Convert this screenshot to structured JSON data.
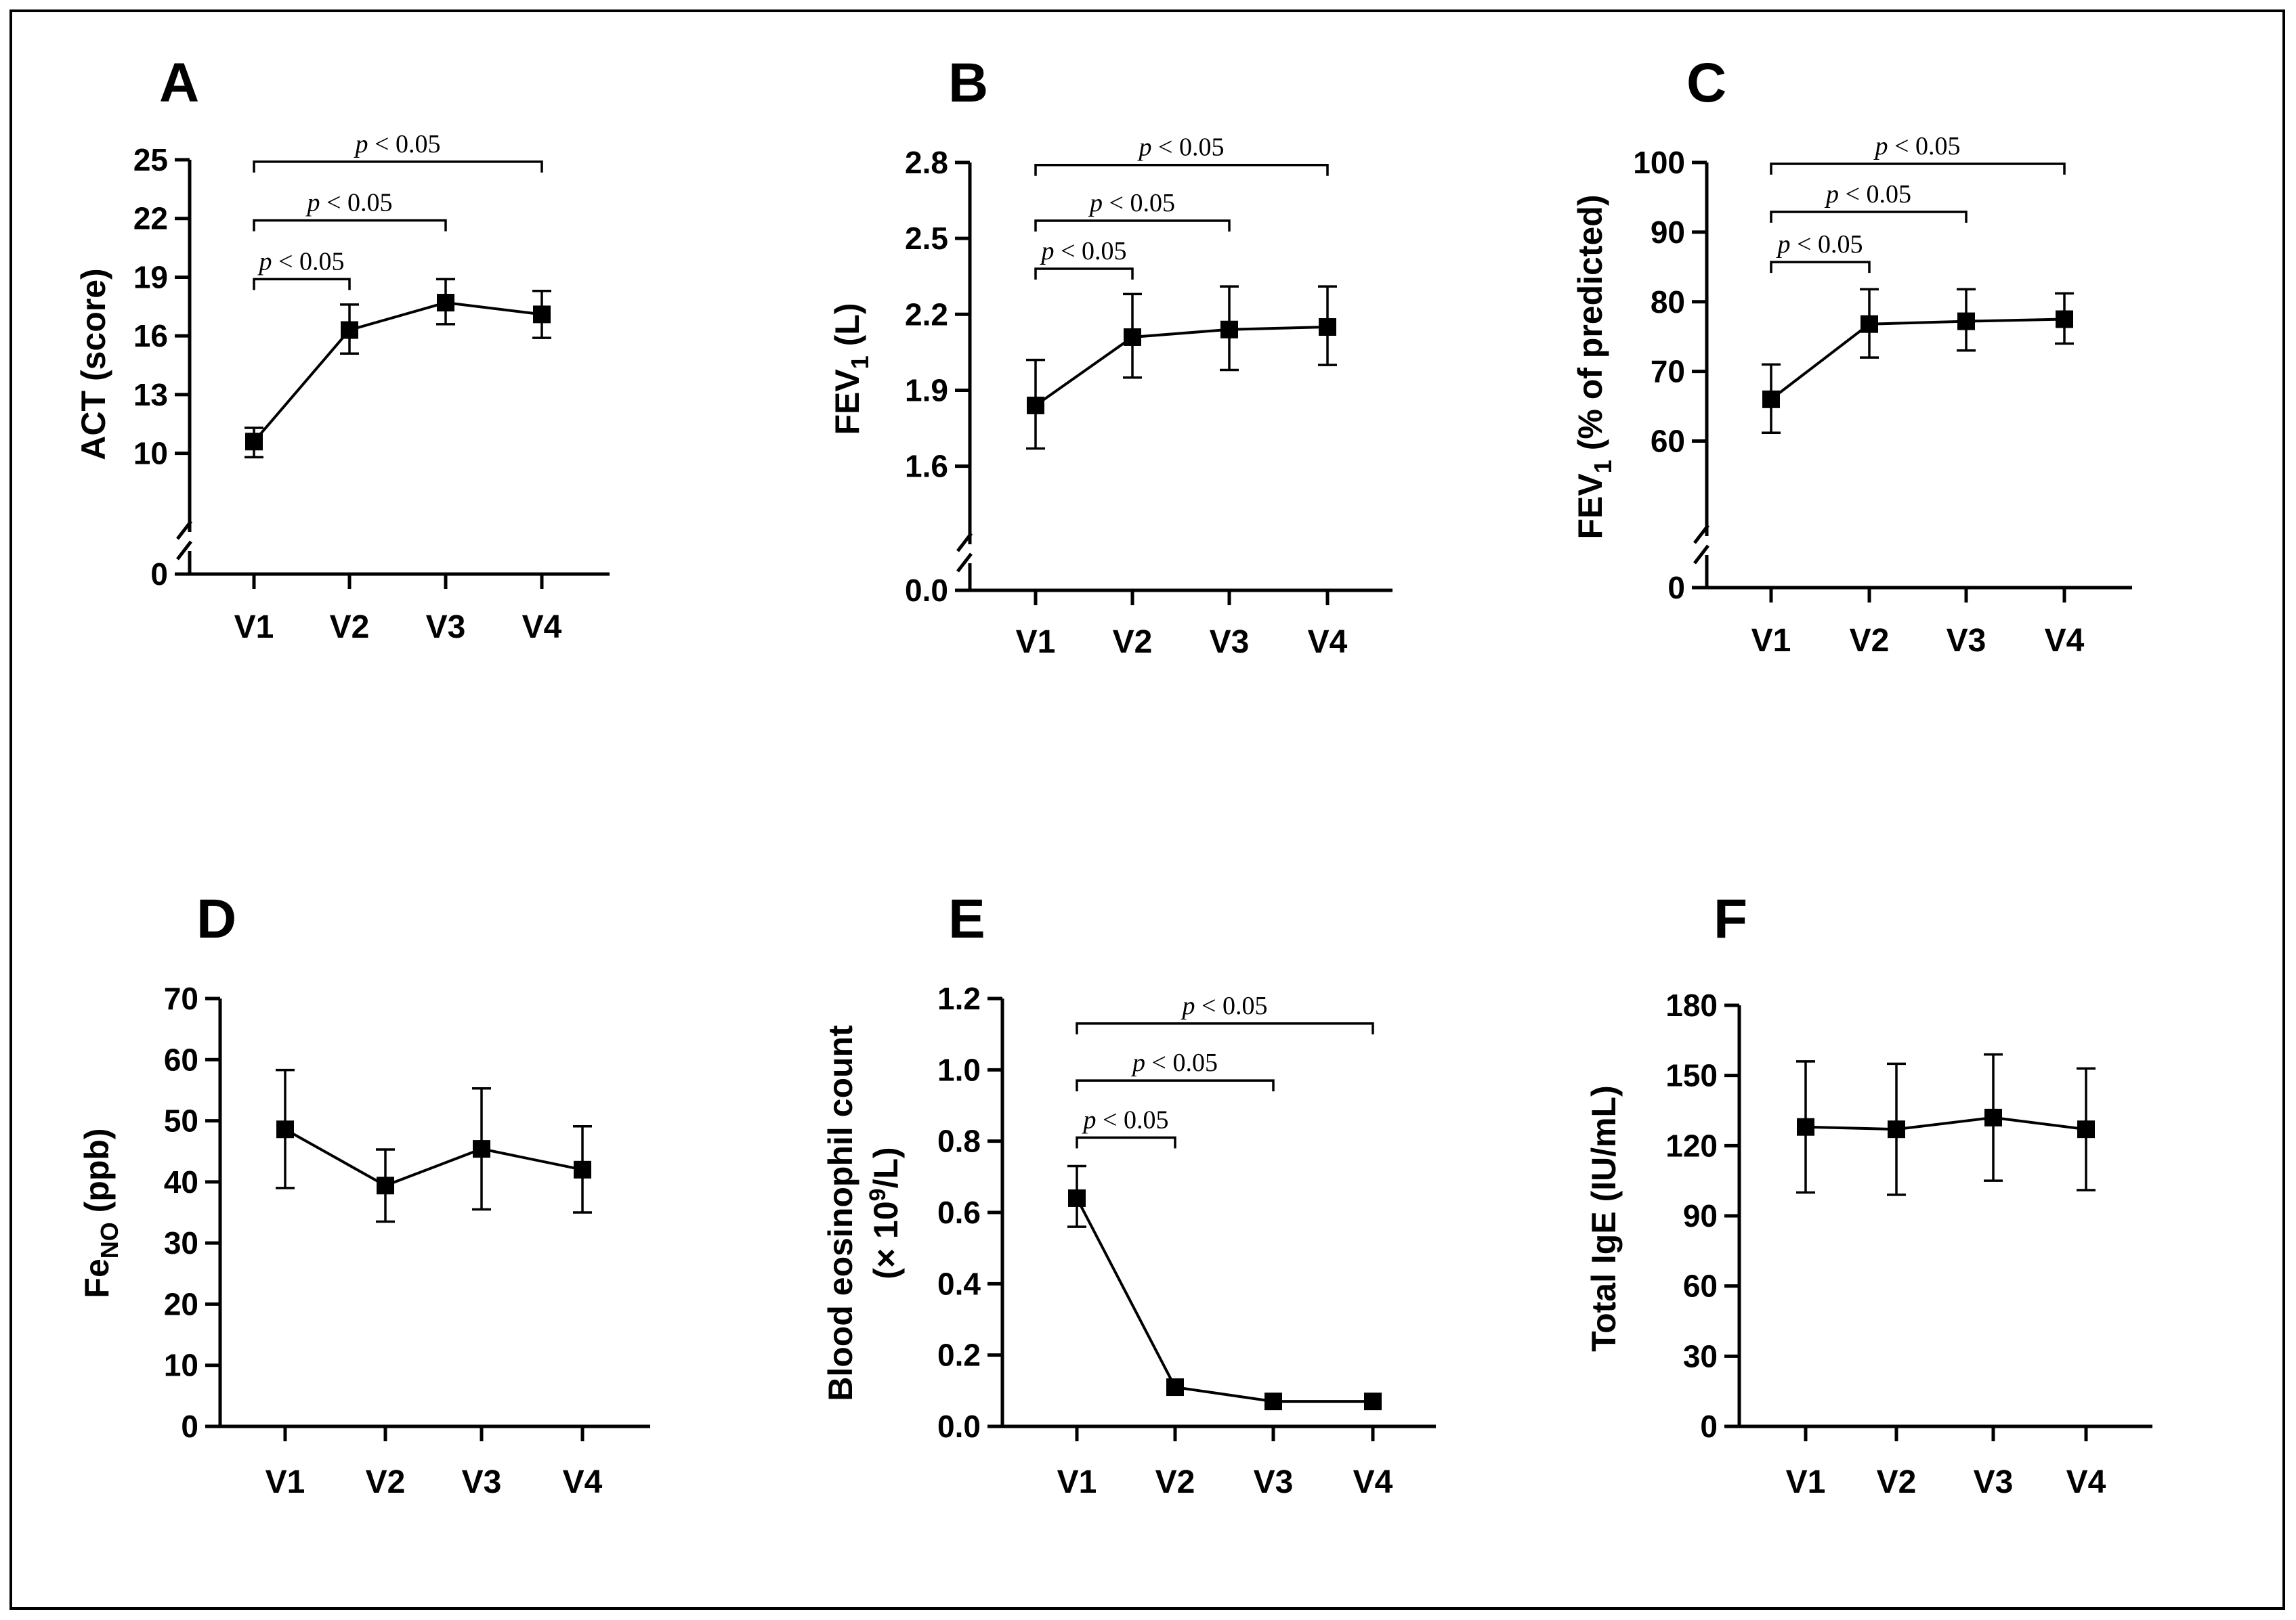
{
  "chart_data": [
    {
      "type": "line",
      "panel": "A",
      "ylabel": "ACT (score)",
      "categories": [
        "V1",
        "V2",
        "V3",
        "V4"
      ],
      "yticks": [
        0,
        10,
        13,
        16,
        19,
        22,
        25
      ],
      "ytick_labels": [
        "0",
        "10",
        "13",
        "16",
        "19",
        "22",
        "25"
      ],
      "ylim": [
        8.5,
        25
      ],
      "axis_break": true,
      "values": [
        10.6,
        16.3,
        17.7,
        17.1
      ],
      "err_low": [
        9.8,
        15.1,
        16.6,
        15.9
      ],
      "err_high": [
        11.3,
        17.6,
        18.9,
        18.3
      ],
      "significance": [
        {
          "from": 0,
          "to": 1,
          "y": 18.9,
          "label": "p < 0.05"
        },
        {
          "from": 0,
          "to": 2,
          "y": 21.9,
          "label": "p < 0.05"
        },
        {
          "from": 0,
          "to": 3,
          "y": 24.9,
          "label": "p < 0.05"
        }
      ]
    },
    {
      "type": "line",
      "panel": "B",
      "ylabel": "FEV",
      "ylabel_sub": "1",
      "ylabel_suffix": " (L)",
      "categories": [
        "V1",
        "V2",
        "V3",
        "V4"
      ],
      "yticks": [
        0.0,
        1.6,
        1.9,
        2.2,
        2.5,
        2.8
      ],
      "ytick_labels": [
        "0.0",
        "1.6",
        "1.9",
        "2.2",
        "2.5",
        "2.8"
      ],
      "ylim": [
        1.5,
        2.8
      ],
      "axis_break": true,
      "values": [
        1.84,
        2.11,
        2.14,
        2.15
      ],
      "err_low": [
        1.67,
        1.95,
        1.98,
        2.0
      ],
      "err_high": [
        2.02,
        2.28,
        2.31,
        2.31
      ],
      "significance": [
        {
          "from": 0,
          "to": 1,
          "y": 2.38,
          "label": "p < 0.05"
        },
        {
          "from": 0,
          "to": 2,
          "y": 2.57,
          "label": "p < 0.05"
        },
        {
          "from": 0,
          "to": 3,
          "y": 2.79,
          "label": "p < 0.05"
        }
      ]
    },
    {
      "type": "line",
      "panel": "C",
      "ylabel": "FEV",
      "ylabel_sub": "1",
      "ylabel_suffix": " (% of predicted)",
      "categories": [
        "V1",
        "V2",
        "V3",
        "V4"
      ],
      "yticks": [
        0,
        60,
        70,
        80,
        90,
        100
      ],
      "ytick_labels": [
        "0",
        "60",
        "70",
        "80",
        "90",
        "100"
      ],
      "ylim": [
        55,
        100
      ],
      "axis_break": true,
      "values": [
        66.0,
        76.8,
        77.2,
        77.5
      ],
      "err_low": [
        61.2,
        72.0,
        73.0,
        74.0
      ],
      "err_high": [
        71.0,
        81.8,
        81.8,
        81.2
      ],
      "significance": [
        {
          "from": 0,
          "to": 1,
          "y": 85.7,
          "label": "p < 0.05"
        },
        {
          "from": 0,
          "to": 2,
          "y": 92.9,
          "label": "p < 0.05"
        },
        {
          "from": 0,
          "to": 3,
          "y": 99.8,
          "label": "p < 0.05"
        }
      ]
    },
    {
      "type": "line",
      "panel": "D",
      "ylabel": "Fe",
      "ylabel_sub": "NO",
      "ylabel_suffix": " (ppb)",
      "categories": [
        "V1",
        "V2",
        "V3",
        "V4"
      ],
      "yticks": [
        0,
        10,
        20,
        30,
        40,
        50,
        60,
        70
      ],
      "ytick_labels": [
        "0",
        "10",
        "20",
        "30",
        "40",
        "50",
        "60",
        "70"
      ],
      "ylim": [
        0,
        70
      ],
      "axis_break": false,
      "values": [
        48.6,
        39.4,
        45.4,
        42.0
      ],
      "err_low": [
        39.0,
        33.5,
        35.5,
        35.0
      ],
      "err_high": [
        58.3,
        45.3,
        55.3,
        49.1
      ],
      "significance": []
    },
    {
      "type": "line",
      "panel": "E",
      "ylabel": "Blood eosinophil count",
      "ylabel2": "(× 10",
      "ylabel2_sup": "9",
      "ylabel2_suffix": "/L)",
      "categories": [
        "V1",
        "V2",
        "V3",
        "V4"
      ],
      "yticks": [
        0.0,
        0.2,
        0.4,
        0.6,
        0.8,
        1.0,
        1.2
      ],
      "ytick_labels": [
        "0.0",
        "0.2",
        "0.4",
        "0.6",
        "0.8",
        "1.0",
        "1.2"
      ],
      "ylim": [
        0,
        1.2
      ],
      "axis_break": false,
      "values": [
        0.64,
        0.11,
        0.07,
        0.07
      ],
      "err_low": [
        0.56,
        0.11,
        0.07,
        0.07
      ],
      "err_high": [
        0.73,
        0.11,
        0.07,
        0.07
      ],
      "significance": [
        {
          "from": 0,
          "to": 1,
          "y": 0.81,
          "label": "p < 0.05"
        },
        {
          "from": 0,
          "to": 2,
          "y": 0.97,
          "label": "p < 0.05"
        },
        {
          "from": 0,
          "to": 3,
          "y": 1.13,
          "label": "p < 0.05"
        }
      ]
    },
    {
      "type": "line",
      "panel": "F",
      "ylabel": "Total IgE (IU/mL)",
      "categories": [
        "V1",
        "V2",
        "V3",
        "V4"
      ],
      "yticks": [
        0,
        30,
        60,
        90,
        120,
        150,
        180
      ],
      "ytick_labels": [
        "0",
        "30",
        "60",
        "90",
        "120",
        "150",
        "180"
      ],
      "ylim": [
        0,
        180
      ],
      "axis_break": false,
      "values": [
        128,
        127,
        132,
        127
      ],
      "err_low": [
        100,
        99,
        105,
        101
      ],
      "err_high": [
        156,
        155,
        159,
        153
      ],
      "significance": []
    }
  ]
}
